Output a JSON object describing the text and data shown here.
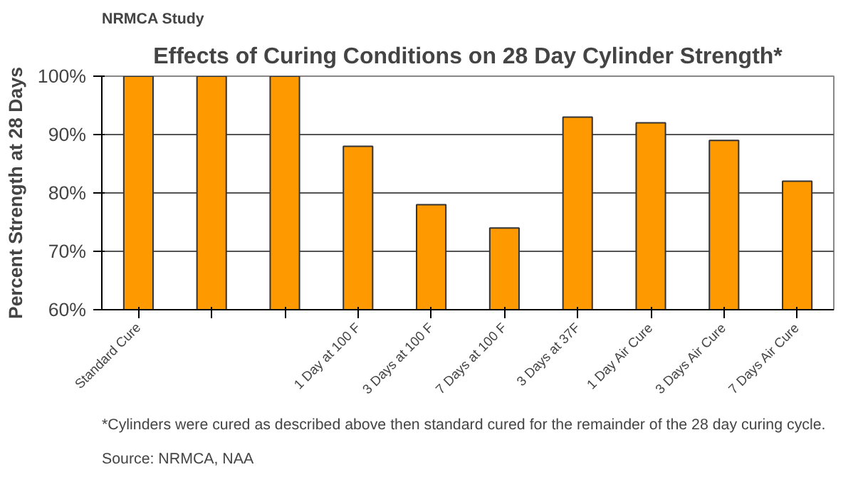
{
  "chart_data": {
    "type": "bar",
    "title": "Effects of Curing Conditions on 28 Day Cylinder Strength*",
    "ylabel": "Percent Strength at 28 Days",
    "categories": [
      "Standard Cure",
      null,
      null,
      "1 Day at 100 F",
      "3 Days at 100 F",
      "7 Days at 100 F",
      "3 Days at 37F",
      "1 Day Air Cure",
      "3 Days Air Cure",
      "7 Days Air Cure"
    ],
    "values": [
      100,
      100,
      100,
      88,
      78,
      74,
      93,
      92,
      89,
      82
    ],
    "color": "#ff9900",
    "ylim": [
      60,
      100
    ],
    "yticks": [
      {
        "value": 60,
        "label": "60%"
      },
      {
        "value": 70,
        "label": "70%"
      },
      {
        "value": 80,
        "label": "80%"
      },
      {
        "value": 90,
        "label": "90%"
      },
      {
        "value": 100,
        "label": "100%"
      }
    ],
    "grid": "y",
    "annotations": [
      "NRMCA Study",
      "*Cylinders were cured as described above then standard cured for the remainder of the 28 day curing cycle.",
      "Source: NRMCA, NAA"
    ]
  }
}
